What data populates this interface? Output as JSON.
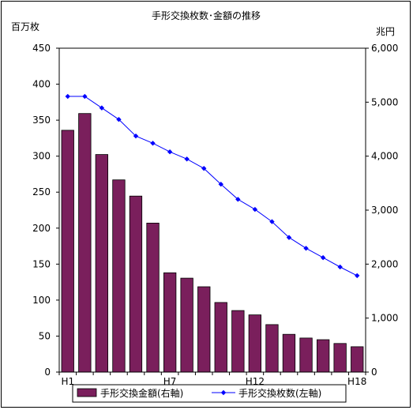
{
  "chart_data": {
    "type": "bar+line",
    "title": "手形交換枚数･金額の推移",
    "left_axis_unit": "百万枚",
    "right_axis_unit": "兆円",
    "left_ylim": [
      0,
      450
    ],
    "left_ticks": [
      "0",
      "50",
      "100",
      "150",
      "200",
      "250",
      "300",
      "350",
      "400",
      "450"
    ],
    "right_ylim": [
      0,
      6000
    ],
    "right_ticks": [
      "0",
      "1,000",
      "2,000",
      "3,000",
      "4,000",
      "5,000",
      "6,000"
    ],
    "categories": [
      "H1",
      "H2",
      "H3",
      "H4",
      "H5",
      "H6",
      "H7",
      "H8",
      "H9",
      "H10",
      "H11",
      "H12",
      "H13",
      "H14",
      "H15",
      "H16",
      "H17",
      "H18"
    ],
    "x_tick_labels": [
      {
        "index": 0,
        "label": "H1"
      },
      {
        "index": 6,
        "label": "H7"
      },
      {
        "index": 11,
        "label": "H12"
      },
      {
        "index": 17,
        "label": "H18"
      }
    ],
    "series": [
      {
        "name": "手形交換金額(右軸)",
        "type": "bar",
        "axis": "right",
        "color": "#7a1f5c",
        "values": [
          4480,
          4790,
          4030,
          3560,
          3260,
          2760,
          1840,
          1740,
          1580,
          1290,
          1140,
          1060,
          880,
          700,
          630,
          600,
          530,
          470
        ]
      },
      {
        "name": "手形交換枚数(左軸)",
        "type": "line",
        "axis": "left",
        "color": "#0000ff",
        "values": [
          383,
          383,
          367,
          351,
          328,
          318,
          306,
          296,
          283,
          261,
          240,
          226,
          209,
          187,
          172,
          159,
          146,
          134
        ]
      }
    ],
    "legend_position": "bottom"
  }
}
